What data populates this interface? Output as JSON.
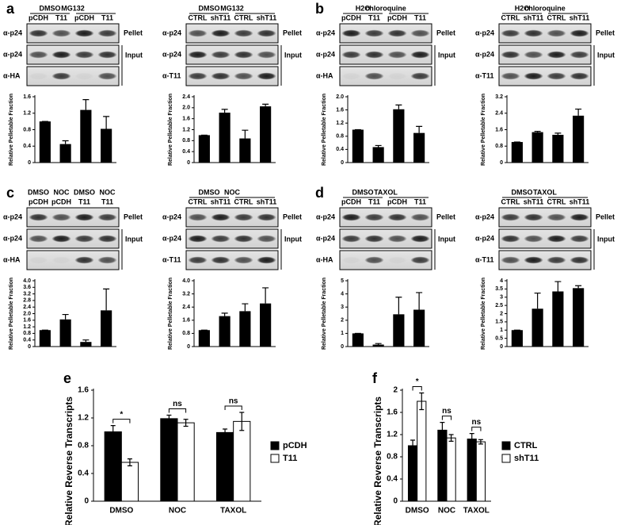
{
  "letters": [
    "a",
    "b",
    "c",
    "d",
    "e",
    "f"
  ],
  "blots": [
    {
      "groups": [
        "DMSO",
        "MG132"
      ],
      "lanes": [
        "pCDH",
        "T11",
        "pCDH",
        "T11"
      ],
      "rows": [
        "α-p24",
        "α-p24",
        "α-HA"
      ],
      "pellet": "Pellet",
      "input": "Input"
    },
    {
      "groups": [
        "DMSO",
        "MG132"
      ],
      "lanes": [
        "CTRL",
        "shT11",
        "CTRL",
        "shT11"
      ],
      "rows": [
        "α-p24",
        "α-p24",
        "α-T11"
      ],
      "pellet": "Pellet",
      "input": "Input"
    },
    {
      "groups": [
        "H2O",
        "chloroquine"
      ],
      "lanes": [
        "pCDH",
        "T11",
        "pCDH",
        "T11"
      ],
      "rows": [
        "α-p24",
        "α-p24",
        "α-HA"
      ],
      "pellet": "Pellet",
      "input": "Input"
    },
    {
      "groups": [
        "H2O",
        "chloroquine"
      ],
      "lanes": [
        "CTRL",
        "shT11",
        "CTRL",
        "shT11"
      ],
      "rows": [
        "α-p24",
        "α-p24",
        "α-T11"
      ],
      "pellet": "Pellet",
      "input": "Input"
    },
    {
      "groups": [
        "DMSO",
        "NOC",
        "DMSO",
        "NOC"
      ],
      "lanes": [
        "pCDH",
        "pCDH",
        "T11",
        "T11"
      ],
      "rows": [
        "α-p24",
        "α-p24",
        "α-HA"
      ],
      "pellet": "Pellet",
      "input": "Input"
    },
    {
      "groups": [
        "DMSO",
        "NOC"
      ],
      "lanes": [
        "CTRL",
        "shT11",
        "CTRL",
        "shT11"
      ],
      "rows": [
        "α-p24",
        "α-p24",
        "α-T11"
      ],
      "pellet": "Pellet",
      "input": "Input"
    },
    {
      "groups": [
        "DMSO",
        "TAXOL"
      ],
      "lanes": [
        "pCDH",
        "T11",
        "pCDH",
        "T11"
      ],
      "rows": [
        "α-p24",
        "α-p24",
        "α-HA"
      ],
      "pellet": "Pellet",
      "input": "Input"
    },
    {
      "groups": [
        "DMSO",
        "TAXOL"
      ],
      "lanes": [
        "CTRL",
        "shT11",
        "CTRL",
        "shT11"
      ],
      "rows": [
        "α-p24",
        "α-p24",
        "α-T11"
      ],
      "pellet": "Pellet",
      "input": "Input"
    }
  ],
  "chart_data": [
    {
      "type": "bar",
      "ylabel": "Relative Pelletable Fraction",
      "color": "#000000",
      "values": [
        1.0,
        0.45,
        1.28,
        0.82
      ],
      "errors": [
        0,
        0.08,
        0.25,
        0.3
      ],
      "ylim": [
        0,
        1.6
      ],
      "yticks": [
        0,
        0.4,
        0.8,
        1.2,
        1.6
      ]
    },
    {
      "type": "bar",
      "ylabel": "Relative Pelletable Fraction",
      "color": "#000000",
      "values": [
        1.0,
        1.82,
        0.88,
        2.05
      ],
      "errors": [
        0,
        0.12,
        0.3,
        0.08
      ],
      "ylim": [
        0,
        2.4
      ],
      "yticks": [
        0,
        0.4,
        0.8,
        1.2,
        1.6,
        {
          "value": 2,
          "label": "2.0"
        },
        2.4
      ]
    },
    {
      "type": "bar",
      "ylabel": "Relative Pelletable Fraction",
      "color": "#000000",
      "values": [
        1.0,
        0.47,
        1.62,
        0.9
      ],
      "errors": [
        0,
        0.05,
        0.13,
        0.2
      ],
      "ylim": [
        0,
        2
      ],
      "yticks": [
        0,
        0.4,
        0.8,
        1.2,
        1.6,
        {
          "value": 2,
          "label": "2.0"
        }
      ]
    },
    {
      "type": "bar",
      "ylabel": "Relative Pelletable Fraction",
      "color": "#000000",
      "values": [
        1.0,
        1.48,
        1.35,
        2.28
      ],
      "errors": [
        0,
        0.04,
        0.08,
        0.32
      ],
      "ylim": [
        0,
        3.2
      ],
      "yticks": [
        0,
        0.8,
        1.6,
        2.4,
        3.2
      ]
    },
    {
      "type": "bar",
      "ylabel": "Relative Pelletable Fraction",
      "color": "#000000",
      "values": [
        1.0,
        1.65,
        0.28,
        2.2
      ],
      "errors": [
        0,
        0.3,
        0.12,
        1.3
      ],
      "ylim": [
        0,
        4
      ],
      "yticks": [
        0,
        0.4,
        0.8,
        1.2,
        1.6,
        {
          "value": 2,
          "label": "2.0"
        },
        2.4,
        2.8,
        3.2,
        3.6,
        {
          "value": 4,
          "label": "4.0"
        }
      ]
    },
    {
      "type": "bar",
      "ylabel": "Relative Pelletable Fraction",
      "color": "#000000",
      "values": [
        1.0,
        1.85,
        2.15,
        2.62
      ],
      "errors": [
        0,
        0.18,
        0.45,
        0.95
      ],
      "ylim": [
        0,
        4
      ],
      "yticks": [
        0,
        0.8,
        1.6,
        2.4,
        3.2,
        {
          "value": 4,
          "label": "4.0"
        }
      ]
    },
    {
      "type": "bar",
      "ylabel": "Relative Pelletable Fraction",
      "color": "#000000",
      "values": [
        1.0,
        0.15,
        2.45,
        2.8
      ],
      "errors": [
        0,
        0.08,
        1.3,
        1.3
      ],
      "ylim": [
        0,
        5
      ],
      "yticks": [
        0,
        1,
        2,
        3,
        4,
        5
      ]
    },
    {
      "type": "bar",
      "ylabel": "Relative Pelletable Fraction",
      "color": "#000000",
      "values": [
        1.0,
        2.3,
        3.35,
        3.55
      ],
      "errors": [
        0,
        0.95,
        0.6,
        0.15
      ],
      "ylim": [
        0,
        4
      ],
      "yticks": [
        0,
        0.5,
        1,
        1.5,
        2,
        2.5,
        3,
        3.5,
        4
      ]
    },
    {
      "type": "grouped_bar",
      "ylabel": "Relative Reverse Transcripts",
      "categories": [
        "DMSO",
        "NOC",
        "TAXOL"
      ],
      "series": [
        {
          "name": "pCDH",
          "color": "#000000",
          "values": [
            1.0,
            1.19,
            0.99
          ],
          "errors": [
            0.09,
            0.05,
            0.05
          ]
        },
        {
          "name": "T11",
          "color": "#ffffff",
          "values": [
            0.56,
            1.13,
            1.15
          ],
          "errors": [
            0.05,
            0.05,
            0.13
          ]
        }
      ],
      "annotations": [
        "*",
        "ns",
        "ns"
      ],
      "legend": "right",
      "ylim": [
        0,
        1.6
      ],
      "yticks": [
        0,
        0.4,
        0.8,
        1.2,
        1.6
      ]
    },
    {
      "type": "grouped_bar",
      "ylabel": "Relative Reverse Transcripts",
      "categories": [
        "DMSO",
        "NOC",
        "TAXOL"
      ],
      "series": [
        {
          "name": "CTRL",
          "color": "#000000",
          "values": [
            1.0,
            1.28,
            1.12
          ],
          "errors": [
            0.1,
            0.14,
            0.1
          ]
        },
        {
          "name": "shT11",
          "color": "#ffffff",
          "values": [
            1.8,
            1.14,
            1.07
          ],
          "errors": [
            0.15,
            0.06,
            0.04
          ]
        }
      ],
      "annotations": [
        "*",
        "ns",
        "ns"
      ],
      "legend": "right",
      "ylim": [
        0,
        2
      ],
      "yticks": [
        0,
        0.4,
        0.8,
        1.2,
        1.6,
        2
      ]
    }
  ]
}
